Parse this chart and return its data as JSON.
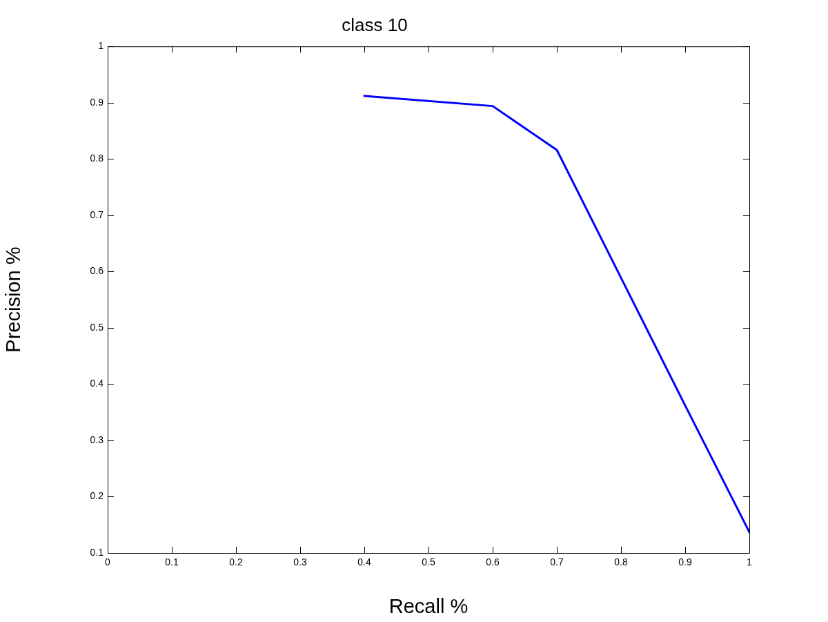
{
  "chart_data": {
    "type": "line",
    "title": "class 10",
    "xlabel": "Recall %",
    "ylabel": "Precision %",
    "xlim": [
      0,
      1
    ],
    "xticks": [
      0,
      0.1,
      0.2,
      0.3,
      0.4,
      0.5,
      0.6,
      0.7,
      0.8,
      0.9,
      1
    ],
    "ylim": [
      0.1,
      1
    ],
    "yticks": [
      0.1,
      0.2,
      0.3,
      0.4,
      0.5,
      0.6,
      0.7,
      0.8,
      0.9,
      1
    ],
    "grid": false,
    "legend": false,
    "marker": "none",
    "line_style": "solid",
    "series": [
      {
        "color": "#0000ff",
        "x": [
          0.4,
          0.6,
          0.7,
          0.8,
          0.9,
          1
        ],
        "values": [
          0.912,
          0.894,
          0.816,
          0.589,
          0.362,
          0.137
        ]
      }
    ]
  }
}
